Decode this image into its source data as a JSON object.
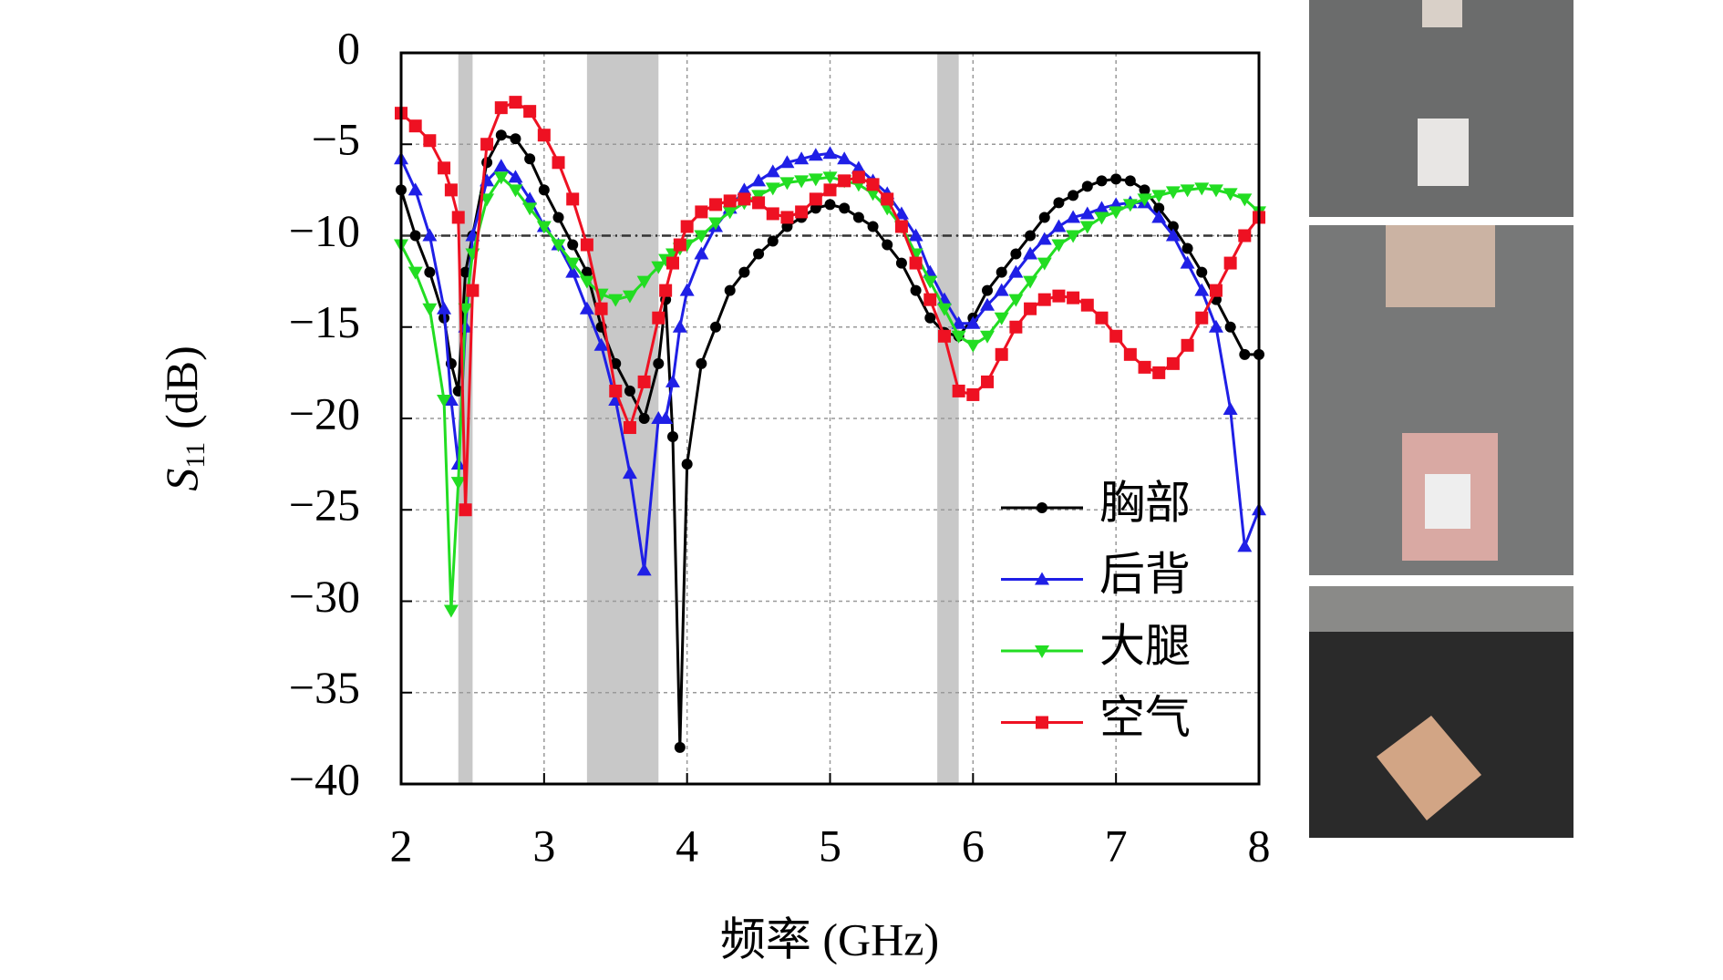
{
  "chart_data": {
    "type": "line",
    "xlabel": "频率 (GHz)",
    "ylabel_symbol": "S",
    "ylabel_subscript": "11",
    "ylabel_unit": "(dB)",
    "xlim": [
      2,
      8
    ],
    "ylim": [
      -40,
      0
    ],
    "xticks": [
      2,
      3,
      4,
      5,
      6,
      7,
      8
    ],
    "yticks": [
      {
        "value": -40,
        "label": "−40"
      },
      {
        "value": -35,
        "label": "−35"
      },
      {
        "value": -30,
        "label": "−30"
      },
      {
        "value": -25,
        "label": "−25"
      },
      {
        "value": -20,
        "label": "−20"
      },
      {
        "value": -15,
        "label": "−15"
      },
      {
        "value": -10,
        "label": "−10"
      },
      {
        "value": -5,
        "label": "−5"
      },
      0
    ],
    "grid": true,
    "reference_line": -10,
    "bands": [
      [
        2.4,
        2.5
      ],
      [
        3.3,
        3.8
      ],
      [
        5.75,
        5.9
      ]
    ],
    "legend": "lower right",
    "x": [
      2.0,
      2.1,
      2.2,
      2.3,
      2.35,
      2.4,
      2.45,
      2.5,
      2.6,
      2.7,
      2.8,
      2.9,
      3.0,
      3.1,
      3.2,
      3.3,
      3.4,
      3.5,
      3.6,
      3.7,
      3.8,
      3.85,
      3.9,
      3.95,
      4.0,
      4.1,
      4.2,
      4.3,
      4.4,
      4.5,
      4.6,
      4.7,
      4.8,
      4.9,
      5.0,
      5.1,
      5.2,
      5.3,
      5.4,
      5.5,
      5.6,
      5.7,
      5.8,
      5.9,
      6.0,
      6.1,
      6.2,
      6.3,
      6.4,
      6.5,
      6.6,
      6.7,
      6.8,
      6.9,
      7.0,
      7.1,
      7.2,
      7.3,
      7.4,
      7.5,
      7.6,
      7.7,
      7.8,
      7.9,
      8.0
    ],
    "series": [
      {
        "name": "胸部",
        "color": "#000000",
        "marker": "circle",
        "values": [
          -7.5,
          -10,
          -12,
          -14.5,
          -17,
          -18.5,
          -12,
          -10,
          -6,
          -4.5,
          -4.7,
          -5.8,
          -7.5,
          -9,
          -10.5,
          -12,
          -15,
          -17,
          -18.5,
          -20,
          -17,
          -13.5,
          -21,
          -38,
          -22.5,
          -17,
          -15,
          -13,
          -12,
          -11,
          -10.3,
          -9.5,
          -9,
          -8.5,
          -8.3,
          -8.5,
          -9,
          -9.5,
          -10.5,
          -11.5,
          -13,
          -14.5,
          -15.3,
          -15.5,
          -14.5,
          -13,
          -12,
          -11,
          -10,
          -9,
          -8.2,
          -7.8,
          -7.3,
          -7,
          -6.9,
          -7,
          -7.5,
          -8.5,
          -9.5,
          -10.7,
          -12,
          -13.5,
          -15,
          -16.5,
          -16.5
        ]
      },
      {
        "name": "后背",
        "color": "#1f1fe6",
        "marker": "triangle-up",
        "values": [
          -5.8,
          -7.5,
          -10,
          -14,
          -19,
          -22.5,
          -15,
          -10,
          -7,
          -6.2,
          -6.8,
          -8,
          -9.5,
          -10.5,
          -12,
          -14,
          -16,
          -19,
          -23,
          -28.3,
          -20,
          -20,
          -18,
          -15,
          -13,
          -11,
          -9.5,
          -8.5,
          -7.5,
          -7,
          -6.5,
          -6,
          -5.8,
          -5.6,
          -5.5,
          -5.8,
          -6.3,
          -7,
          -7.7,
          -8.8,
          -10,
          -12,
          -13.5,
          -14.8,
          -14.8,
          -13.8,
          -13,
          -12,
          -11,
          -10.2,
          -9.5,
          -9,
          -8.8,
          -8.5,
          -8.3,
          -8.2,
          -8.2,
          -9,
          -10,
          -11.5,
          -13,
          -15,
          -19.5,
          -27,
          -25
        ]
      },
      {
        "name": "大腿",
        "color": "#22dd22",
        "marker": "triangle-down",
        "values": [
          -10.5,
          -12,
          -14,
          -19,
          -30.5,
          -23.5,
          -14,
          -11,
          -8,
          -6.8,
          -7.5,
          -8.5,
          -9.5,
          -10.5,
          -11.5,
          -12.5,
          -13.2,
          -13.5,
          -13.3,
          -12.5,
          -11.7,
          -11.3,
          -11,
          -10.7,
          -10.5,
          -10,
          -9.3,
          -8.7,
          -8.2,
          -7.8,
          -7.4,
          -7.1,
          -7,
          -6.9,
          -6.8,
          -7,
          -7.2,
          -7.7,
          -8.5,
          -9.5,
          -11,
          -12.5,
          -14,
          -15.5,
          -16,
          -15.5,
          -14.5,
          -13.5,
          -12.5,
          -11.5,
          -10.5,
          -10,
          -9.5,
          -9,
          -8.7,
          -8.3,
          -8,
          -7.8,
          -7.6,
          -7.5,
          -7.4,
          -7.5,
          -7.7,
          -8,
          -8.7
        ]
      },
      {
        "name": "空气",
        "color": "#ee1122",
        "marker": "square",
        "values": [
          -3.3,
          -4,
          -4.8,
          -6.3,
          -7.5,
          -9,
          -25,
          -13,
          -5,
          -3,
          -2.7,
          -3.2,
          -4.5,
          -6,
          -8,
          -10.5,
          -14,
          -18.5,
          -20.5,
          -18,
          -14.5,
          -13,
          -11.5,
          -10.5,
          -9.5,
          -8.7,
          -8.3,
          -8.1,
          -8,
          -8.2,
          -8.8,
          -9,
          -8.7,
          -8,
          -7.5,
          -7,
          -6.8,
          -7.2,
          -8,
          -9.5,
          -11.5,
          -13.5,
          -15.5,
          -18.5,
          -18.7,
          -18,
          -16.5,
          -15,
          -14,
          -13.5,
          -13.3,
          -13.4,
          -13.8,
          -14.5,
          -15.5,
          -16.5,
          -17.2,
          -17.5,
          -17,
          -16,
          -14.5,
          -13,
          -11.5,
          -10,
          -9
        ]
      }
    ]
  }
}
